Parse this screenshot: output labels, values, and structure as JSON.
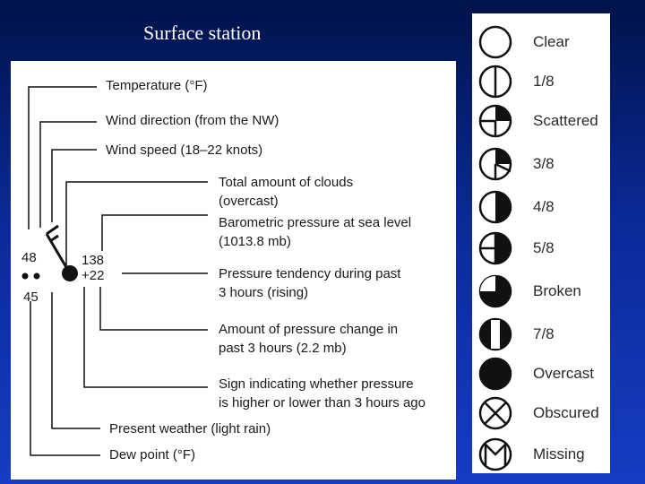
{
  "title": "Surface station",
  "station_model": {
    "temperature_value": "48",
    "dew_point_value": "45",
    "pressure_value": "138",
    "tendency_value": "+22",
    "labels": [
      {
        "id": "temperature",
        "lines": [
          "Temperature (°F)"
        ]
      },
      {
        "id": "wind-direction",
        "lines": [
          "Wind direction (from the NW)"
        ]
      },
      {
        "id": "wind-speed",
        "lines": [
          "Wind speed (18–22 knots)"
        ]
      },
      {
        "id": "total-clouds",
        "lines": [
          "Total amount of clouds",
          "(overcast)"
        ]
      },
      {
        "id": "barometric-pressure",
        "lines": [
          "Barometric pressure at sea level",
          "(1013.8 mb)"
        ]
      },
      {
        "id": "pressure-tendency",
        "lines": [
          "Pressure tendency during past",
          "3 hours (rising)"
        ]
      },
      {
        "id": "pressure-change",
        "lines": [
          "Amount of pressure change in",
          "past 3 hours (2.2 mb)"
        ]
      },
      {
        "id": "pressure-sign",
        "lines": [
          "Sign indicating whether pressure",
          "is higher or lower than 3 hours ago"
        ]
      },
      {
        "id": "present-weather",
        "lines": [
          "Present weather (light rain)"
        ]
      },
      {
        "id": "dew-point",
        "lines": [
          "Dew point (°F)"
        ]
      }
    ]
  },
  "cloud_cover": [
    {
      "label": "Clear",
      "symbol": "clear"
    },
    {
      "label": "1/8",
      "symbol": "one-eighth"
    },
    {
      "label": "Scattered",
      "symbol": "scattered"
    },
    {
      "label": "3/8",
      "symbol": "three-eighths"
    },
    {
      "label": "4/8",
      "symbol": "four-eighths"
    },
    {
      "label": "5/8",
      "symbol": "five-eighths"
    },
    {
      "label": "Broken",
      "symbol": "broken"
    },
    {
      "label": "7/8",
      "symbol": "seven-eighths"
    },
    {
      "label": "Overcast",
      "symbol": "overcast"
    },
    {
      "label": "Obscured",
      "symbol": "obscured"
    },
    {
      "label": "Missing",
      "symbol": "missing"
    }
  ],
  "colors": {
    "background_top": "#00124a",
    "background_bottom": "#163cc4",
    "ink": "#111111"
  }
}
